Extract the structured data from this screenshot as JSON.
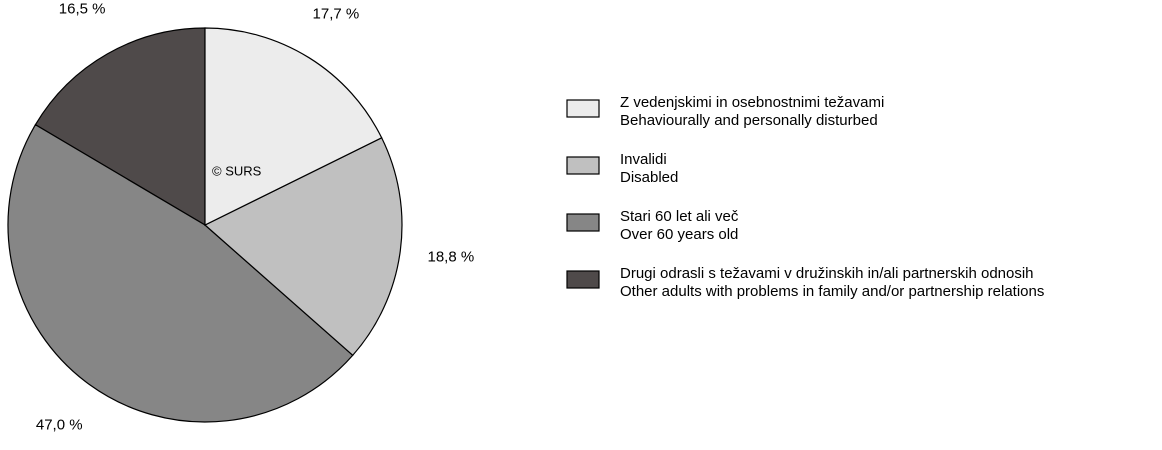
{
  "chart_data": {
    "type": "pie",
    "categories": [
      [
        "Z vedenjskimi in osebnostnimi težavami",
        "Behaviourally and personally disturbed"
      ],
      [
        "Invalidi",
        "Disabled"
      ],
      [
        "Stari 60 let ali več",
        "Over 60 years old"
      ],
      [
        "Drugi odrasli s težavami v družinskih in/ali partnerskih odnosih",
        "Other adults with problems in family and/or partnership relations"
      ]
    ],
    "values": [
      17.7,
      18.8,
      47.0,
      16.5
    ],
    "value_labels": [
      "17,7 %",
      "18,8 %",
      "47,0 %",
      "16,5 %"
    ],
    "colors": [
      "#ececec",
      "#c0c0c0",
      "#868686",
      "#4f4a4a"
    ],
    "annotation": "© SURS"
  }
}
